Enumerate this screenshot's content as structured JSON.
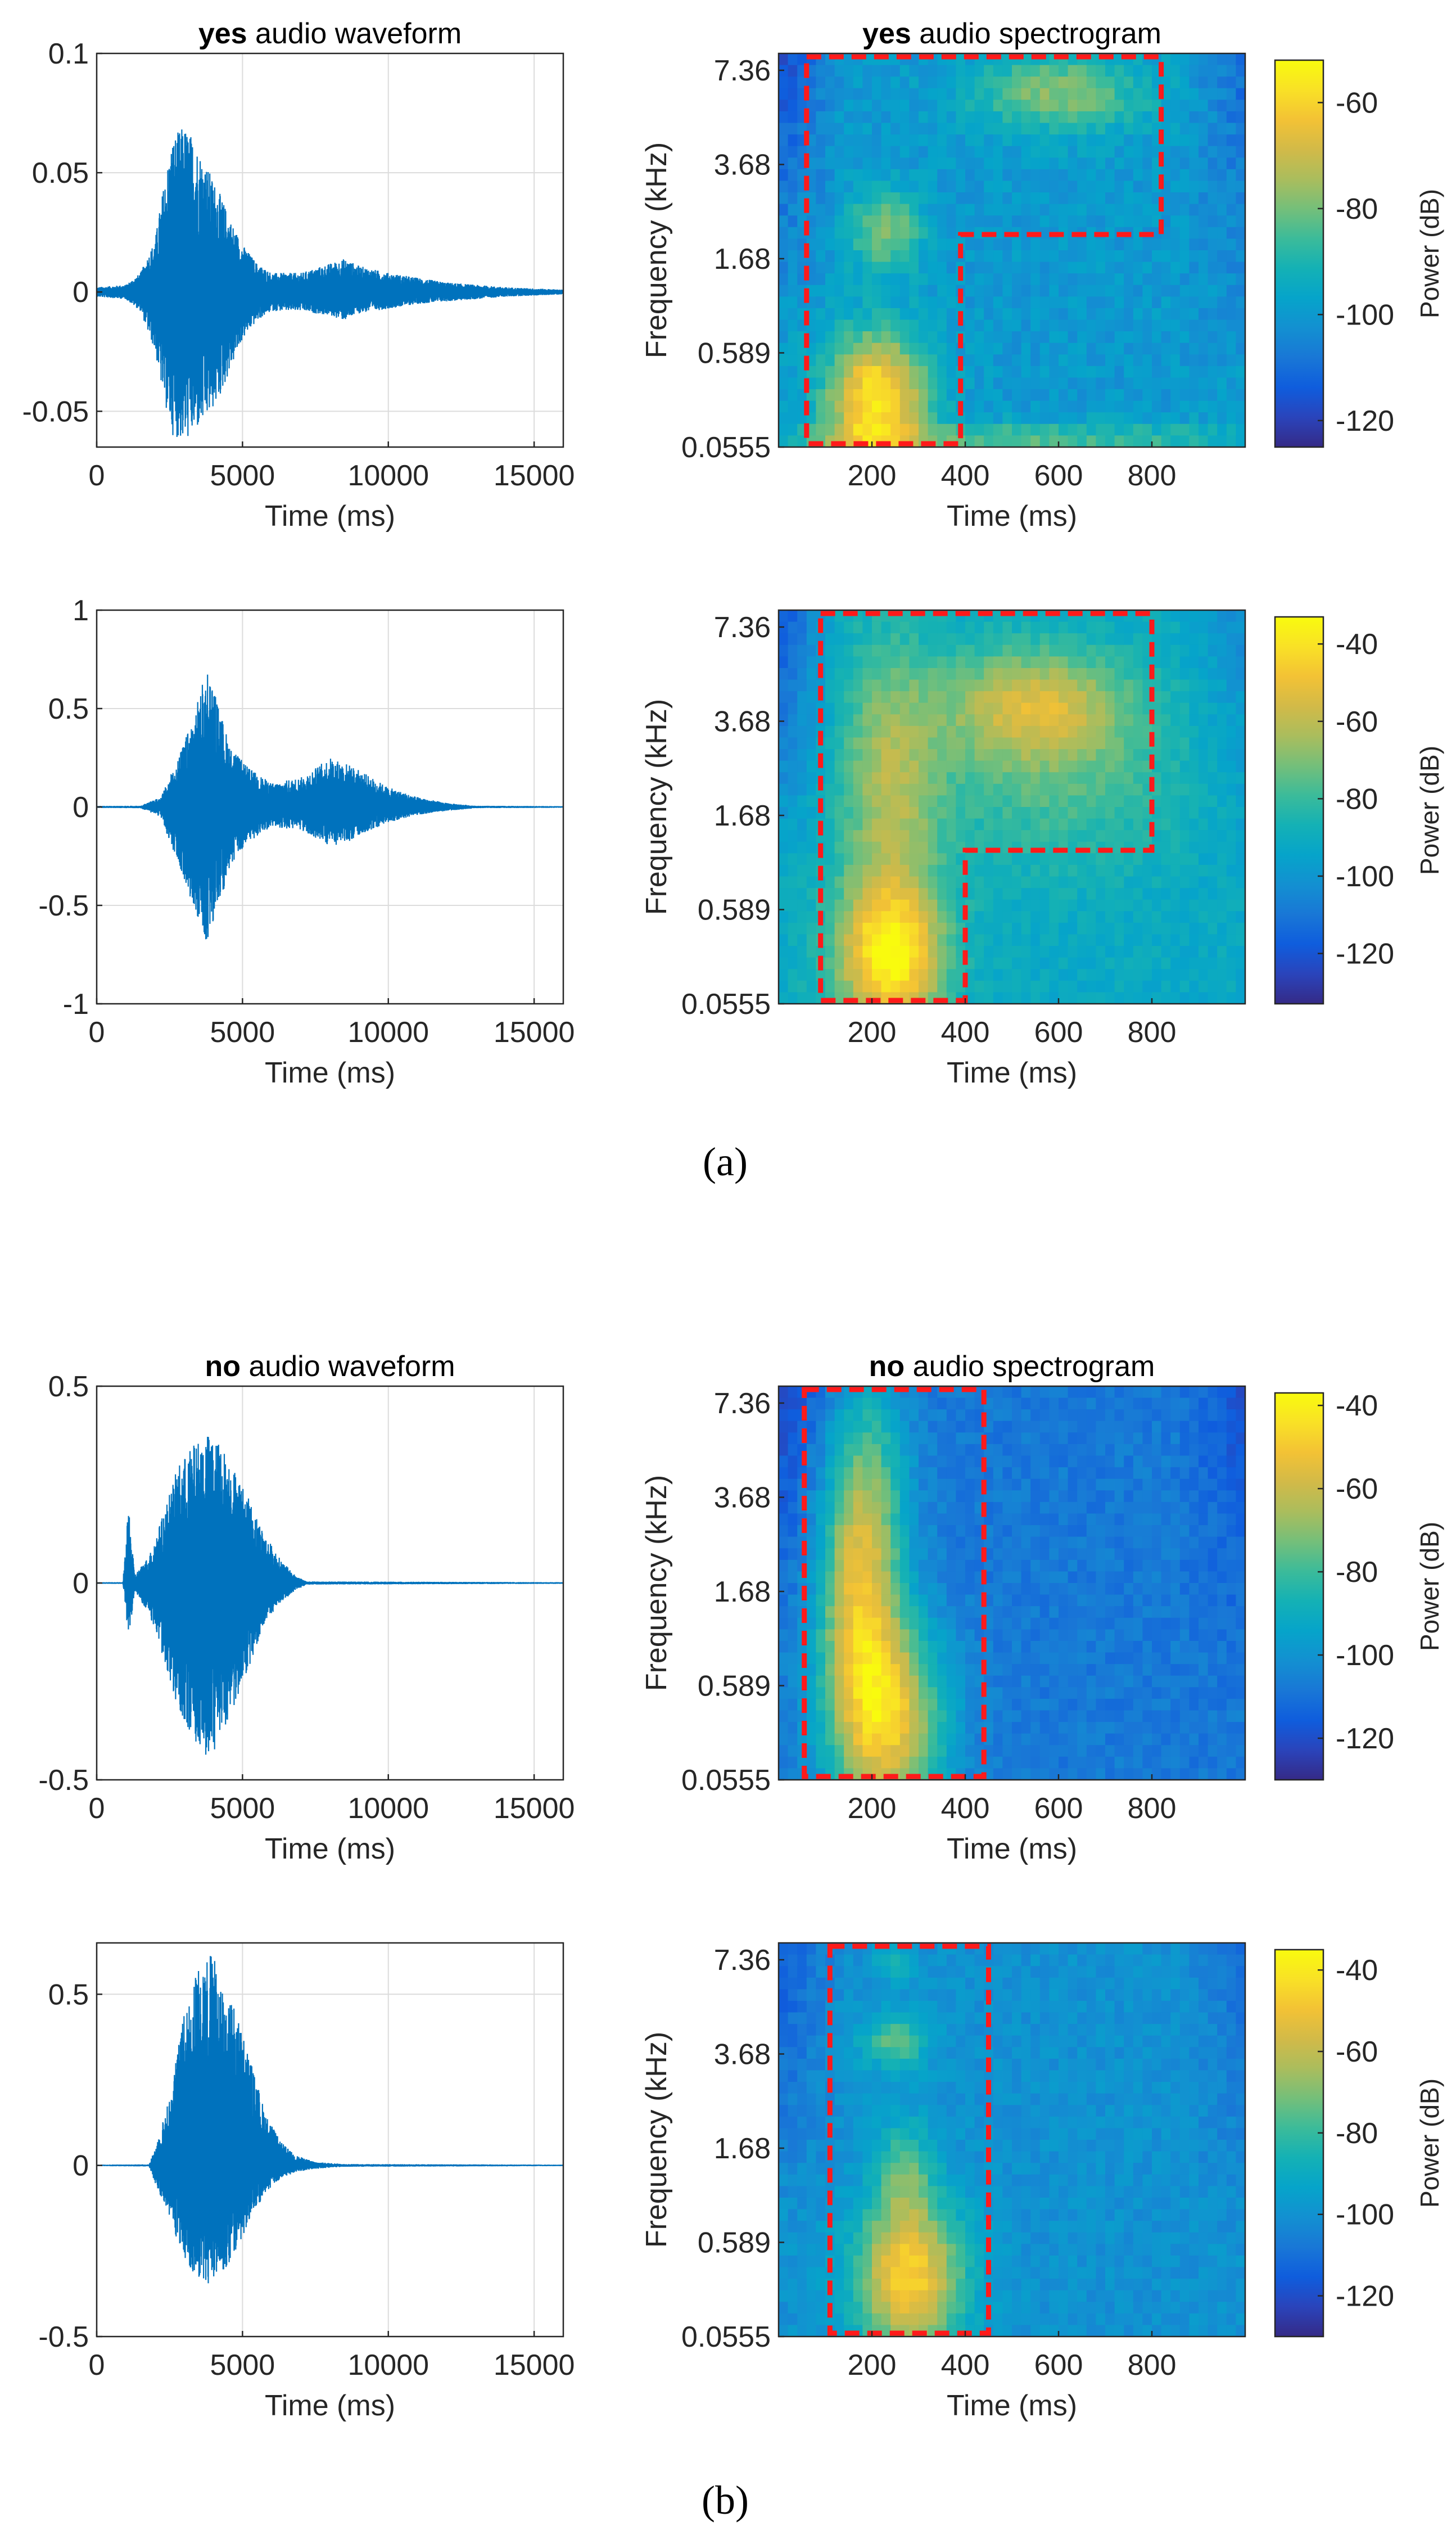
{
  "figure_labels": [
    "(a)",
    "(b)"
  ],
  "colors": {
    "waveform": "#0072bd",
    "roi_box": "#ff1a1a",
    "axis": "#262626",
    "grid": "#dcdcdc",
    "parula": [
      "#352a87",
      "#2a44bb",
      "#0f5ddd",
      "#1977d6",
      "#1390d1",
      "#06a4ca",
      "#14b1b5",
      "#3bbb9a",
      "#74bf7a",
      "#aabd5d",
      "#d2ba48",
      "#f3c235",
      "#f9e126",
      "#f9fb0e"
    ]
  },
  "chart_data": [
    {
      "id": "yes-1-waveform",
      "type": "line",
      "title_bold": "yes",
      "title_rest": " audio waveform",
      "xlabel": "Time (ms)",
      "ylabel": "",
      "xlim": [
        0,
        16000
      ],
      "ylim": [
        -0.065,
        0.1
      ],
      "xticks": [
        0,
        5000,
        10000,
        15000
      ],
      "xtick_labels": [
        "0",
        "5000",
        "10000",
        "15000"
      ],
      "yticks": [
        -0.05,
        0,
        0.05,
        0.1
      ],
      "ytick_labels": [
        "-0.05",
        "0",
        "0.05",
        "0.1"
      ],
      "envelope": {
        "x": [
          0,
          1000,
          1500,
          2000,
          2300,
          2600,
          3000,
          3300,
          3700,
          4200,
          4600,
          5000,
          5500,
          6000,
          7000,
          8000,
          8500,
          9000,
          10000,
          11000,
          12000,
          13000,
          14000,
          15000,
          16000
        ],
        "upper": [
          0.002,
          0.003,
          0.008,
          0.022,
          0.045,
          0.065,
          0.07,
          0.065,
          0.055,
          0.042,
          0.03,
          0.02,
          0.012,
          0.008,
          0.008,
          0.012,
          0.014,
          0.011,
          0.008,
          0.006,
          0.004,
          0.003,
          0.002,
          0.0015,
          0.001
        ],
        "lower": [
          -0.002,
          -0.003,
          -0.008,
          -0.025,
          -0.045,
          -0.06,
          -0.063,
          -0.06,
          -0.055,
          -0.045,
          -0.032,
          -0.02,
          -0.012,
          -0.008,
          -0.008,
          -0.01,
          -0.012,
          -0.009,
          -0.007,
          -0.005,
          -0.004,
          -0.003,
          -0.002,
          -0.0015,
          -0.001
        ]
      }
    },
    {
      "id": "yes-1-spectrogram",
      "type": "heatmap",
      "title_bold": "yes",
      "title_rest": " audio spectrogram",
      "xlabel": "Time (ms)",
      "ylabel": "Frequency (kHz)",
      "xlim": [
        0,
        1000
      ],
      "xticks": [
        200,
        400,
        600,
        800
      ],
      "xtick_labels": [
        "200",
        "400",
        "600",
        "800"
      ],
      "ytick_labels": [
        "7.36",
        "3.68",
        "1.68",
        "0.589",
        "0.0555"
      ],
      "clim": [
        -125,
        -52
      ],
      "colorbar_label": "Power (dB)",
      "cbar_ticks": [
        -60,
        -80,
        -100,
        -120
      ],
      "cbar_tick_labels": [
        "-60",
        "-80",
        "-100",
        "-120"
      ],
      "background": -100,
      "corner": -118,
      "blobs": [
        {
          "t": 210,
          "f": 0.12,
          "st": 75,
          "sf": 0.12,
          "a": 45
        },
        {
          "t": 230,
          "f": 0.55,
          "st": 55,
          "sf": 0.07,
          "a": 22
        },
        {
          "t": 600,
          "f": 0.9,
          "st": 130,
          "sf": 0.07,
          "a": 22
        },
        {
          "t": 500,
          "f": 0.02,
          "st": 400,
          "sf": 0.03,
          "a": 16
        }
      ],
      "roi": [
        [
          60,
          1.0
        ],
        [
          820,
          1.0
        ],
        [
          820,
          0.54
        ],
        [
          390,
          0.54
        ],
        [
          390,
          0.0
        ],
        [
          60,
          0.0
        ]
      ]
    },
    {
      "id": "yes-2-waveform",
      "type": "line",
      "title_bold": "",
      "title_rest": "",
      "xlabel": "Time (ms)",
      "ylabel": "",
      "xlim": [
        0,
        16000
      ],
      "ylim": [
        -1,
        1
      ],
      "xticks": [
        0,
        5000,
        10000,
        15000
      ],
      "xtick_labels": [
        "0",
        "5000",
        "10000",
        "15000"
      ],
      "yticks": [
        -1,
        -0.5,
        0,
        0.5,
        1
      ],
      "ytick_labels": [
        "-1",
        "-0.5",
        "0",
        "0.5",
        "1"
      ],
      "envelope": {
        "x": [
          0,
          1500,
          2200,
          2800,
          3300,
          3800,
          4200,
          4600,
          5200,
          6000,
          7000,
          8000,
          8600,
          9200,
          10000,
          11000,
          12000,
          13000,
          16000
        ],
        "upper": [
          0.005,
          0.006,
          0.05,
          0.25,
          0.45,
          0.72,
          0.5,
          0.3,
          0.2,
          0.12,
          0.15,
          0.25,
          0.22,
          0.17,
          0.1,
          0.05,
          0.02,
          0.006,
          0.004
        ],
        "lower": [
          -0.005,
          -0.006,
          -0.05,
          -0.3,
          -0.5,
          -0.7,
          -0.5,
          -0.3,
          -0.18,
          -0.1,
          -0.12,
          -0.2,
          -0.18,
          -0.13,
          -0.08,
          -0.04,
          -0.02,
          -0.006,
          -0.004
        ]
      }
    },
    {
      "id": "yes-2-spectrogram",
      "type": "heatmap",
      "title_bold": "",
      "title_rest": "",
      "xlabel": "Time (ms)",
      "ylabel": "Frequency (kHz)",
      "xlim": [
        0,
        1000
      ],
      "xticks": [
        200,
        400,
        600,
        800
      ],
      "xtick_labels": [
        "200",
        "400",
        "600",
        "800"
      ],
      "ytick_labels": [
        "7.36",
        "3.68",
        "1.68",
        "0.589",
        "0.0555"
      ],
      "clim": [
        -133,
        -33
      ],
      "colorbar_label": "Power (dB)",
      "cbar_ticks": [
        -40,
        -60,
        -80,
        -100,
        -120
      ],
      "cbar_tick_labels": [
        "-40",
        "-60",
        "-80",
        "-100",
        "-120"
      ],
      "background": -92,
      "corner": -120,
      "blobs": [
        {
          "t": 240,
          "f": 0.12,
          "st": 80,
          "sf": 0.13,
          "a": 55
        },
        {
          "t": 240,
          "f": 0.55,
          "st": 75,
          "sf": 0.25,
          "a": 28
        },
        {
          "t": 550,
          "f": 0.76,
          "st": 140,
          "sf": 0.1,
          "a": 35
        },
        {
          "t": 600,
          "f": 0.55,
          "st": 200,
          "sf": 0.15,
          "a": 14
        }
      ],
      "roi": [
        [
          90,
          1.0
        ],
        [
          800,
          1.0
        ],
        [
          800,
          0.39
        ],
        [
          400,
          0.39
        ],
        [
          400,
          0.0
        ],
        [
          90,
          0.0
        ]
      ]
    },
    {
      "id": "no-1-waveform",
      "type": "line",
      "title_bold": "no",
      "title_rest": " audio waveform",
      "xlabel": "Time (ms)",
      "ylabel": "",
      "xlim": [
        0,
        16000
      ],
      "ylim": [
        -0.5,
        0.5
      ],
      "xticks": [
        0,
        5000,
        10000,
        15000
      ],
      "xtick_labels": [
        "0",
        "5000",
        "10000",
        "15000"
      ],
      "yticks": [
        -0.5,
        0,
        0.5
      ],
      "ytick_labels": [
        "-0.5",
        "0",
        "0.5"
      ],
      "envelope": {
        "x": [
          0,
          900,
          1100,
          1300,
          1800,
          2300,
          2800,
          3300,
          3800,
          4300,
          4800,
          5300,
          5800,
          6300,
          6800,
          7200,
          16000
        ],
        "upper": [
          0.002,
          0.002,
          0.2,
          0.02,
          0.07,
          0.18,
          0.3,
          0.35,
          0.38,
          0.35,
          0.28,
          0.2,
          0.12,
          0.06,
          0.02,
          0.004,
          0.002
        ],
        "lower": [
          -0.002,
          -0.002,
          -0.15,
          -0.02,
          -0.08,
          -0.2,
          -0.32,
          -0.4,
          -0.45,
          -0.4,
          -0.3,
          -0.2,
          -0.1,
          -0.05,
          -0.02,
          -0.004,
          -0.002
        ]
      }
    },
    {
      "id": "no-1-spectrogram",
      "type": "heatmap",
      "title_bold": "no",
      "title_rest": " audio spectrogram",
      "xlabel": "Time (ms)",
      "ylabel": "Frequency (kHz)",
      "xlim": [
        0,
        1000
      ],
      "xticks": [
        200,
        400,
        600,
        800
      ],
      "xtick_labels": [
        "200",
        "400",
        "600",
        "800"
      ],
      "ytick_labels": [
        "7.36",
        "3.68",
        "1.68",
        "0.589",
        "0.0555"
      ],
      "clim": [
        -130,
        -37
      ],
      "colorbar_label": "Power (dB)",
      "cbar_ticks": [
        -40,
        -60,
        -80,
        -100,
        -120
      ],
      "cbar_tick_labels": [
        "-40",
        "-60",
        "-80",
        "-100",
        "-120"
      ],
      "background": -108,
      "corner": -122,
      "blobs": [
        {
          "t": 230,
          "f": 0.15,
          "st": 85,
          "sf": 0.18,
          "a": 58
        },
        {
          "t": 170,
          "f": 0.45,
          "st": 60,
          "sf": 0.2,
          "a": 40
        },
        {
          "t": 190,
          "f": 0.75,
          "st": 60,
          "sf": 0.2,
          "a": 28
        }
      ],
      "roi": [
        [
          55,
          1.0
        ],
        [
          440,
          1.0
        ],
        [
          440,
          0.0
        ],
        [
          55,
          0.0
        ]
      ]
    },
    {
      "id": "no-2-waveform",
      "type": "line",
      "title_bold": "",
      "title_rest": "",
      "xlabel": "Time (ms)",
      "ylabel": "",
      "xlim": [
        0,
        16000
      ],
      "ylim": [
        -0.5,
        0.65
      ],
      "xticks": [
        0,
        5000,
        10000,
        15000
      ],
      "xtick_labels": [
        "0",
        "5000",
        "10000",
        "15000"
      ],
      "yticks": [
        -0.5,
        0,
        0.5
      ],
      "ytick_labels": [
        "-0.5",
        "0",
        "0.5"
      ],
      "envelope": {
        "x": [
          0,
          1800,
          2000,
          2500,
          3000,
          3500,
          3900,
          4300,
          4800,
          5300,
          5800,
          6300,
          6800,
          7500,
          8500,
          16000
        ],
        "upper": [
          0.002,
          0.003,
          0.05,
          0.2,
          0.45,
          0.6,
          0.63,
          0.55,
          0.45,
          0.3,
          0.15,
          0.07,
          0.03,
          0.01,
          0.004,
          0.002
        ],
        "lower": [
          -0.002,
          -0.003,
          -0.05,
          -0.15,
          -0.28,
          -0.33,
          -0.35,
          -0.32,
          -0.25,
          -0.15,
          -0.08,
          -0.04,
          -0.02,
          -0.01,
          -0.004,
          -0.002
        ]
      }
    },
    {
      "id": "no-2-spectrogram",
      "type": "heatmap",
      "title_bold": "",
      "title_rest": "",
      "xlabel": "Time (ms)",
      "ylabel": "Frequency (kHz)",
      "xlim": [
        0,
        1000
      ],
      "xticks": [
        200,
        400,
        600,
        800
      ],
      "xtick_labels": [
        "200",
        "400",
        "600",
        "800"
      ],
      "ytick_labels": [
        "7.36",
        "3.68",
        "1.68",
        "0.589",
        "0.0555"
      ],
      "clim": [
        -130,
        -35
      ],
      "colorbar_label": "Power (dB)",
      "cbar_ticks": [
        -40,
        -60,
        -80,
        -100,
        -120
      ],
      "cbar_tick_labels": [
        "-40",
        "-60",
        "-80",
        "-100",
        "-120"
      ],
      "background": -100,
      "corner": -118,
      "blobs": [
        {
          "t": 280,
          "f": 0.15,
          "st": 80,
          "sf": 0.14,
          "a": 55
        },
        {
          "t": 270,
          "f": 0.42,
          "st": 40,
          "sf": 0.09,
          "a": 22
        },
        {
          "t": 250,
          "f": 0.75,
          "st": 50,
          "sf": 0.05,
          "a": 25
        },
        {
          "t": 250,
          "f": 0.95,
          "st": 30,
          "sf": 0.03,
          "a": 18
        }
      ],
      "roi": [
        [
          110,
          1.0
        ],
        [
          450,
          1.0
        ],
        [
          450,
          0.0
        ],
        [
          110,
          0.0
        ]
      ]
    }
  ]
}
